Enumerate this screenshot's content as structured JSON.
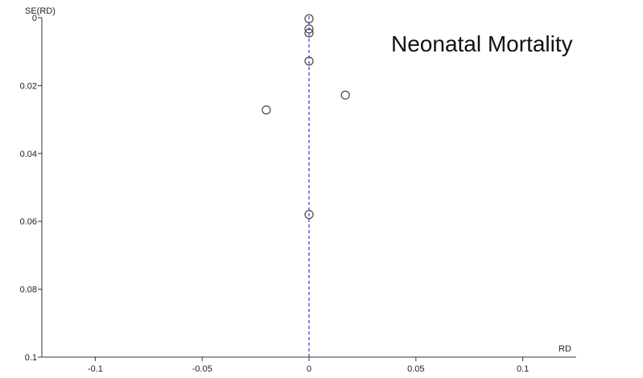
{
  "chart_data": {
    "type": "scatter",
    "title": "",
    "annotation": "Neonatal Mortality",
    "xlabel": "RD",
    "ylabel": "SE(RD)",
    "xlim": [
      -0.125,
      0.125
    ],
    "ylim": [
      0,
      0.1
    ],
    "y_inverted": true,
    "x_ticks": [
      -0.1,
      -0.05,
      0,
      0.05,
      0.1
    ],
    "x_tick_labels": [
      "-0.1",
      "-0.05",
      "0",
      "0.05",
      "0.1"
    ],
    "y_ticks": [
      0,
      0.02,
      0.04,
      0.06,
      0.08,
      0.1
    ],
    "y_tick_labels": [
      "0",
      "0.02",
      "0.04",
      "0.06",
      "0.08",
      "0.1"
    ],
    "grid": false,
    "reference_line": {
      "x": 0,
      "style": "dashed",
      "color": "#5b6ee1"
    },
    "marker_color": "#444444",
    "points": [
      {
        "x": 0.0,
        "y": 0.0003
      },
      {
        "x": 0.0,
        "y": 0.0033
      },
      {
        "x": 0.0,
        "y": 0.0045
      },
      {
        "x": 0.0,
        "y": 0.0128
      },
      {
        "x": 0.017,
        "y": 0.0228
      },
      {
        "x": -0.02,
        "y": 0.0272
      },
      {
        "x": 0.0,
        "y": 0.058
      }
    ]
  }
}
